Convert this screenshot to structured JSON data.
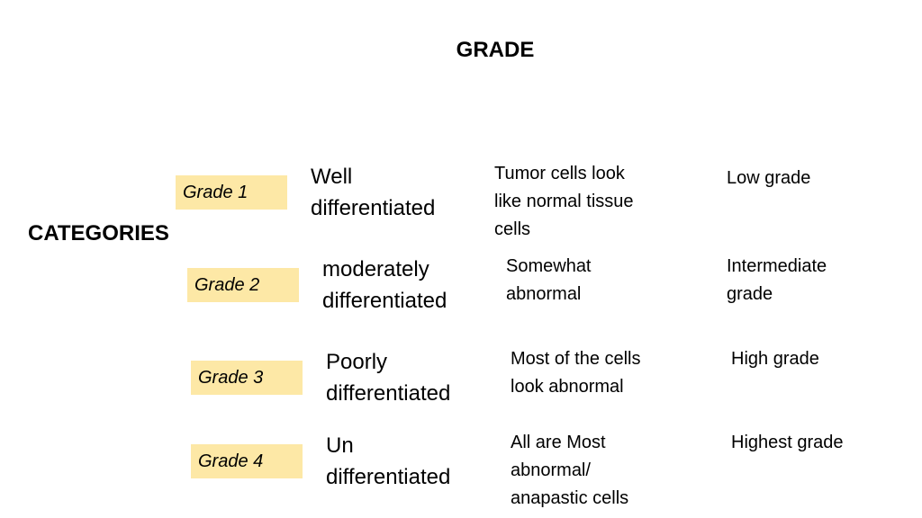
{
  "slide": {
    "title": "GRADE",
    "categories_label": "CATEGORIES"
  },
  "rows": [
    {
      "grade": "Grade 1",
      "diff_line1": "Well",
      "diff_line2": "differentiated",
      "desc_lines": [
        "Tumor cells look",
        "like normal tissue",
        "cells"
      ],
      "level_lines": [
        "Low grade"
      ]
    },
    {
      "grade": "Grade 2",
      "diff_line1": "moderately",
      "diff_line2": "differentiated",
      "desc_lines": [
        "Somewhat",
        "abnormal"
      ],
      "level_lines": [
        "Intermediate",
        "grade"
      ]
    },
    {
      "grade": "Grade 3",
      "diff_line1": "Poorly",
      "diff_line2": "differentiated",
      "desc_lines": [
        "Most of the cells",
        "look abnormal"
      ],
      "level_lines": [
        "High  grade"
      ]
    },
    {
      "grade": "Grade 4",
      "diff_line1": "Un",
      "diff_line2": "differentiated",
      "desc_lines": [
        "All are Most",
        "abnormal/",
        "anapastic cells"
      ],
      "level_lines": [
        "Highest grade"
      ]
    }
  ],
  "colors": {
    "grade_box_fill": "#fde8a6",
    "text": "#000000",
    "background": "#ffffff"
  }
}
